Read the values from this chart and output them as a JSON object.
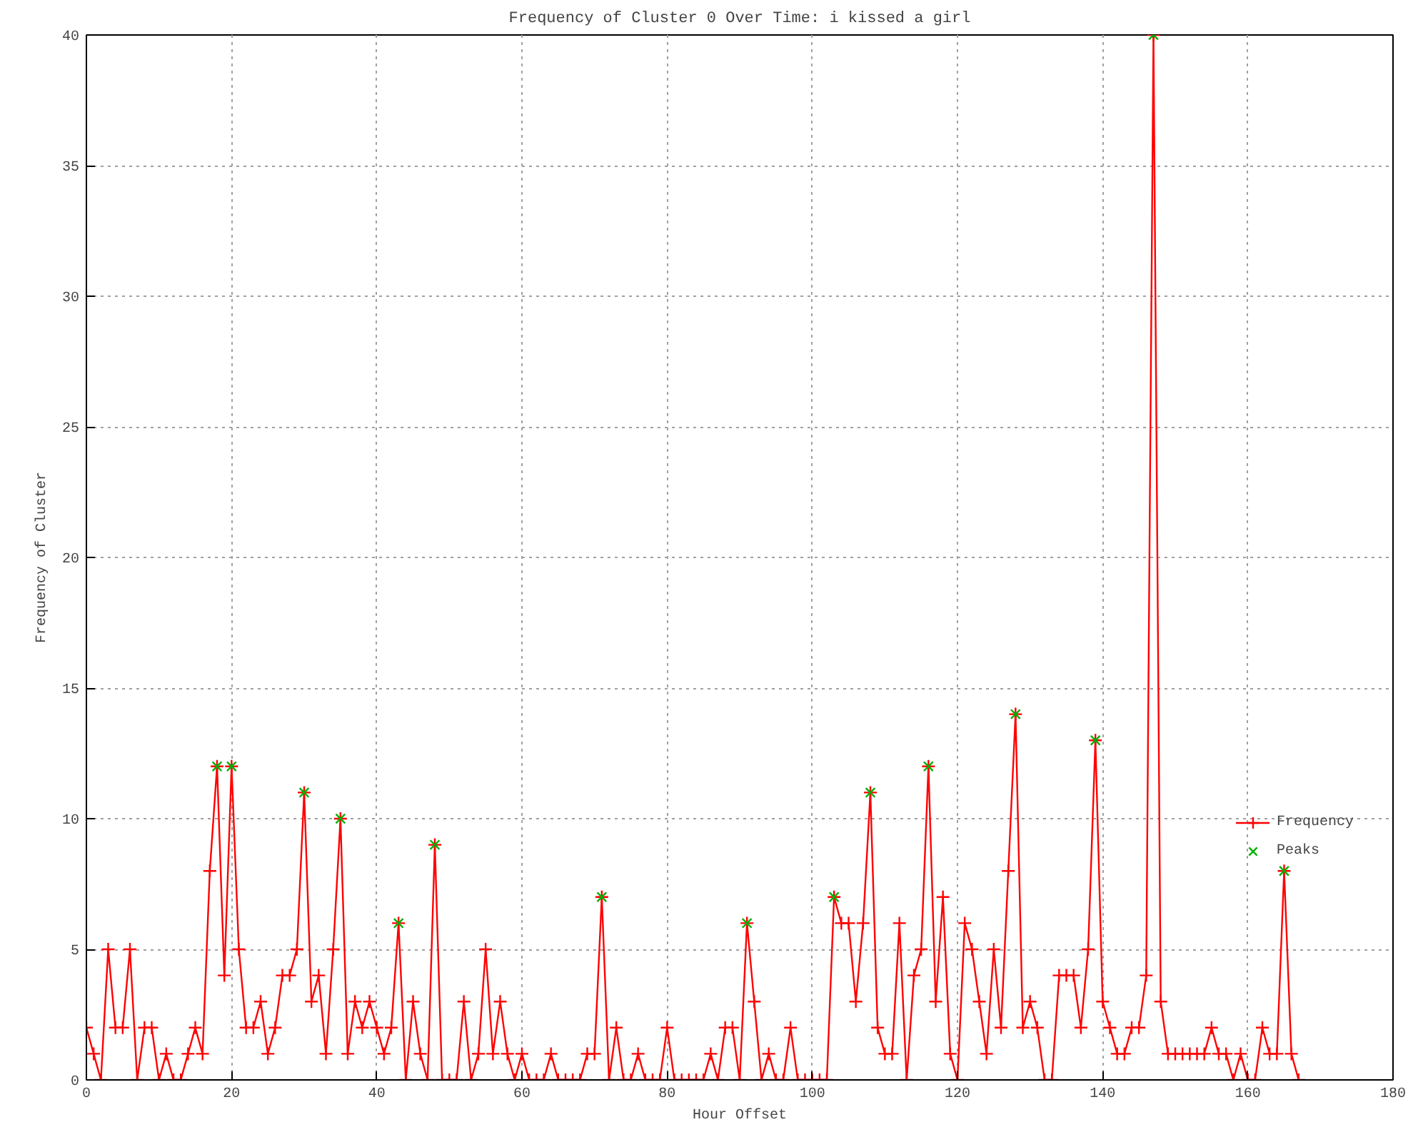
{
  "chart_data": {
    "type": "line",
    "title": "Frequency of Cluster 0 Over Time: i kissed a girl",
    "xlabel": "Hour Offset",
    "ylabel": "Frequency of Cluster",
    "x": [
      0,
      1,
      2,
      3,
      4,
      5,
      6,
      7,
      8,
      9,
      10,
      11,
      12,
      13,
      14,
      15,
      16,
      17,
      18,
      19,
      20,
      21,
      22,
      23,
      24,
      25,
      26,
      27,
      28,
      29,
      30,
      31,
      32,
      33,
      34,
      35,
      36,
      37,
      38,
      39,
      40,
      41,
      42,
      43,
      44,
      45,
      46,
      47,
      48,
      49,
      50,
      51,
      52,
      53,
      54,
      55,
      56,
      57,
      58,
      59,
      60,
      61,
      62,
      63,
      64,
      65,
      66,
      67,
      68,
      69,
      70,
      71,
      72,
      73,
      74,
      75,
      76,
      77,
      78,
      79,
      80,
      81,
      82,
      83,
      84,
      85,
      86,
      87,
      88,
      89,
      90,
      91,
      92,
      93,
      94,
      95,
      96,
      97,
      98,
      99,
      100,
      101,
      102,
      103,
      104,
      105,
      106,
      107,
      108,
      109,
      110,
      111,
      112,
      113,
      114,
      115,
      116,
      117,
      118,
      119,
      120,
      121,
      122,
      123,
      124,
      125,
      126,
      127,
      128,
      129,
      130,
      131,
      132,
      133,
      134,
      135,
      136,
      137,
      138,
      139,
      140,
      141,
      142,
      143,
      144,
      145,
      146,
      147,
      148,
      149,
      150,
      151,
      152,
      153,
      154,
      155,
      156,
      157,
      158,
      159,
      160,
      161,
      162,
      163,
      164,
      165,
      166,
      167
    ],
    "series": [
      {
        "name": "Frequency",
        "color": "#ff0000",
        "marker": "cross",
        "values": [
          2,
          1,
          0,
          5,
          2,
          2,
          5,
          0,
          2,
          2,
          0,
          1,
          0,
          0,
          1,
          2,
          1,
          8,
          12,
          4,
          12,
          5,
          2,
          2,
          3,
          1,
          2,
          4,
          4,
          5,
          11,
          3,
          4,
          1,
          5,
          10,
          1,
          3,
          2,
          3,
          2,
          1,
          2,
          6,
          0,
          3,
          1,
          0,
          9,
          0,
          0,
          0,
          3,
          0,
          1,
          5,
          1,
          3,
          1,
          0,
          1,
          0,
          0,
          0,
          1,
          0,
          0,
          0,
          0,
          1,
          1,
          7,
          0,
          2,
          0,
          0,
          1,
          0,
          0,
          0,
          2,
          0,
          0,
          0,
          0,
          0,
          1,
          0,
          2,
          2,
          0,
          6,
          3,
          0,
          1,
          0,
          0,
          2,
          0,
          0,
          0,
          0,
          0,
          7,
          6,
          6,
          3,
          6,
          11,
          2,
          1,
          1,
          6,
          0,
          4,
          5,
          12,
          3,
          7,
          1,
          0,
          6,
          5,
          3,
          1,
          5,
          2,
          8,
          14,
          2,
          3,
          2,
          0,
          0,
          4,
          4,
          4,
          2,
          5,
          13,
          3,
          2,
          1,
          1,
          2,
          2,
          4,
          40,
          3,
          1,
          1,
          1,
          1,
          1,
          1,
          2,
          1,
          1,
          0,
          1,
          0,
          0,
          2,
          1,
          1,
          8,
          1,
          0
        ]
      },
      {
        "name": "Peaks",
        "type": "scatter",
        "color": "#00b000",
        "marker": "x",
        "x": [
          18,
          20,
          30,
          35,
          43,
          48,
          71,
          91,
          103,
          108,
          116,
          128,
          139,
          147,
          165
        ],
        "values": [
          12,
          12,
          11,
          10,
          6,
          9,
          7,
          6,
          7,
          11,
          12,
          14,
          13,
          40,
          8
        ]
      }
    ],
    "xlim": [
      0,
      180
    ],
    "xticks": [
      0,
      20,
      40,
      60,
      80,
      100,
      120,
      140,
      160,
      180
    ],
    "ylim": [
      0,
      40
    ],
    "yticks": [
      0,
      5,
      10,
      15,
      20,
      25,
      30,
      35,
      40
    ],
    "grid": true,
    "legend": "bottom right"
  }
}
